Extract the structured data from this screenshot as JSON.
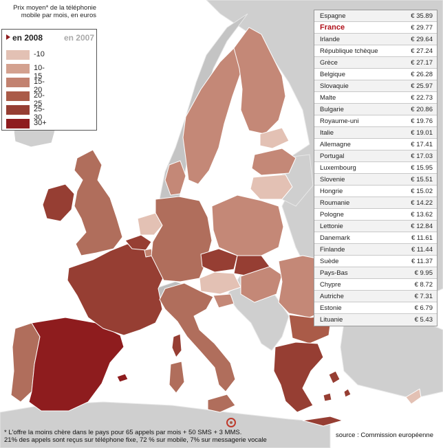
{
  "header": {
    "line1": "Prix moyen* de la téléphonie",
    "line2": "mobile par mois, en euros"
  },
  "legend": {
    "current": "en 2008",
    "previous": "en 2007",
    "items": [
      {
        "label": "-10",
        "color": "#e3c1b4"
      },
      {
        "label": "10-15",
        "color": "#d3a18f"
      },
      {
        "label": "15-20",
        "color": "#c28270"
      },
      {
        "label": "20-25",
        "color": "#aa5b48"
      },
      {
        "label": "25-30",
        "color": "#963e33"
      },
      {
        "label": "30+",
        "color": "#8e1c1e"
      }
    ]
  },
  "prices": [
    {
      "country": "Espagne",
      "value": "€ 35.89"
    },
    {
      "country": "France",
      "value": "€ 29.77",
      "highlight": true
    },
    {
      "country": "Irlande",
      "value": "€ 29.64"
    },
    {
      "country": "République tchèque",
      "value": "€ 27.24"
    },
    {
      "country": "Grèce",
      "value": "€ 27.17"
    },
    {
      "country": "Belgique",
      "value": "€ 26.28"
    },
    {
      "country": "Slovaquie",
      "value": "€ 25.97"
    },
    {
      "country": "Malte",
      "value": "€ 22.73"
    },
    {
      "country": "Bulgarie",
      "value": "€ 20.86"
    },
    {
      "country": "Royaume-uni",
      "value": "€ 19.76"
    },
    {
      "country": "Italie",
      "value": "€ 19.01"
    },
    {
      "country": "Allemagne",
      "value": "€ 17.41"
    },
    {
      "country": "Portugal",
      "value": "€ 17.03"
    },
    {
      "country": "Luxembourg",
      "value": "€ 15.95"
    },
    {
      "country": "Slovenie",
      "value": "€ 15.51"
    },
    {
      "country": "Hongrie",
      "value": "€ 15.02"
    },
    {
      "country": "Roumanie",
      "value": "€ 14.22"
    },
    {
      "country": "Pologne",
      "value": "€ 13.62"
    },
    {
      "country": "Lettonie",
      "value": "€ 12.84"
    },
    {
      "country": "Danemark",
      "value": "€ 11.61"
    },
    {
      "country": "Finlande",
      "value": "€ 11.44"
    },
    {
      "country": "Suède",
      "value": "€ 11.37"
    },
    {
      "country": "Pays-Bas",
      "value": "€ 9.95"
    },
    {
      "country": "Chypre",
      "value": "€ 8.72"
    },
    {
      "country": "Autriche",
      "value": "€ 7.31"
    },
    {
      "country": "Estonie",
      "value": "€ 6.79"
    },
    {
      "country": "Lituanie",
      "value": "€ 5.43"
    }
  ],
  "colors": {
    "land_non_eu": "#cfcfcf",
    "land_non_eu_dark": "#a8a8a8",
    "highlight": "#b0101a",
    "malta_circle": "#c0392b"
  },
  "footnote": {
    "line1": "* L'offre la moins chère dans le pays pour 65 appels par mois + 50 SMS + 3 MMS.",
    "line2": "21% des appels sont reçus sur téléphone fixe, 72 % sur mobile, 7% sur messagerie vocale"
  },
  "source": "source :  Commission européenne"
}
